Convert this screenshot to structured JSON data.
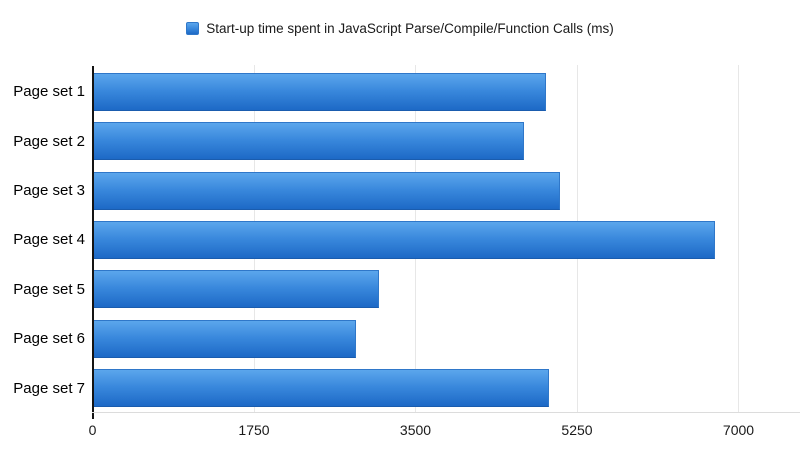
{
  "chart_data": {
    "type": "bar",
    "orientation": "horizontal",
    "title": "Start-up time spent in JavaScript Parse/Compile/Function Calls (ms)",
    "categories": [
      "Page set 1",
      "Page set 2",
      "Page set 3",
      "Page set 4",
      "Page set 5",
      "Page set 6",
      "Page set 7"
    ],
    "values": [
      4900,
      4660,
      5050,
      6730,
      3090,
      2840,
      4940
    ],
    "xlabel": "",
    "ylabel": "",
    "xlim": [
      0,
      7000
    ],
    "x_ticks": [
      0,
      1750,
      3500,
      5250,
      7000
    ],
    "grid": "vertical-only",
    "legend_position": "top-center",
    "background": "#ffffff"
  },
  "colors": {
    "bar-top": "#5ba6ec",
    "bar-mid": "#3a89dd",
    "bar-bottom": "#1d69c6",
    "bar-border": "#2f77c9",
    "bar-edge-dark": "#1a5cae",
    "gridline": "#e7e7e7",
    "axis": "#141414",
    "baseline": "#dcdcdc",
    "text": "#1a1a1a"
  }
}
